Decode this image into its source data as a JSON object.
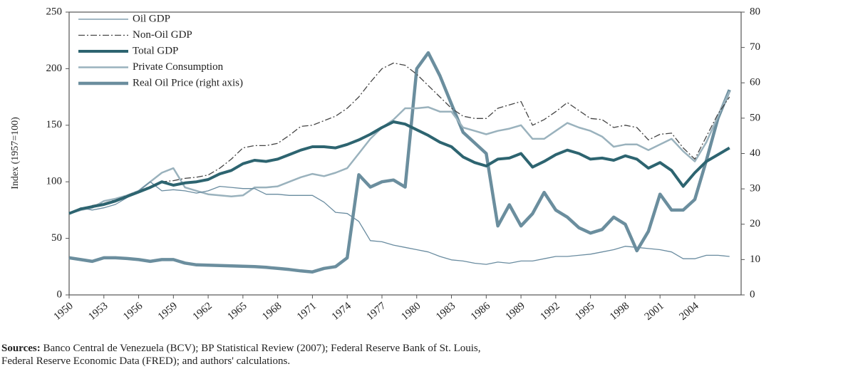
{
  "chart_data": {
    "type": "line",
    "y_label": "Index (1957=100)",
    "note_label": "Sources:",
    "note": "Banco Central de Venezuela (BCV); BP Statistical Review (2007); Federal Reserve Bank of St. Louis, Federal Reserve Economic Data (FRED); and authors' calculations.",
    "x": [
      1950,
      1951,
      1952,
      1953,
      1954,
      1955,
      1956,
      1957,
      1958,
      1959,
      1960,
      1961,
      1962,
      1963,
      1964,
      1965,
      1966,
      1967,
      1968,
      1969,
      1970,
      1971,
      1972,
      1973,
      1974,
      1975,
      1976,
      1977,
      1978,
      1979,
      1980,
      1981,
      1982,
      1983,
      1984,
      1985,
      1986,
      1987,
      1988,
      1989,
      1990,
      1991,
      1992,
      1993,
      1994,
      1995,
      1996,
      1997,
      1998,
      1999,
      2000,
      2001,
      2002,
      2003,
      2004,
      2005,
      2006,
      2007
    ],
    "xlim": [
      1950,
      2008
    ],
    "xticks": [
      1950,
      1953,
      1956,
      1959,
      1962,
      1965,
      1968,
      1971,
      1974,
      1977,
      1980,
      1983,
      1986,
      1989,
      1992,
      1995,
      1998,
      2001,
      2004
    ],
    "ylim": [
      0,
      250
    ],
    "yticks": [
      0,
      50,
      100,
      150,
      200,
      250
    ],
    "y2lim": [
      0,
      80
    ],
    "y2ticks": [
      0,
      10,
      20,
      30,
      40,
      50,
      60,
      70,
      80
    ],
    "series": [
      {
        "name": "Oil GDP",
        "color": "#6a8ca0",
        "style": "solid",
        "width": 1.3,
        "values": [
          72,
          77,
          75,
          77,
          80,
          86,
          92,
          100,
          92,
          93,
          92,
          90,
          92,
          96,
          95,
          94,
          94,
          89,
          89,
          88,
          88,
          88,
          82,
          73,
          72,
          65,
          48,
          47,
          44,
          42,
          40,
          38,
          34,
          31,
          30,
          28,
          27,
          29,
          28,
          30,
          30,
          32,
          34,
          34,
          35,
          36,
          38,
          40,
          43,
          42,
          41,
          40,
          38,
          32,
          32,
          35,
          35,
          34
        ]
      },
      {
        "name": "Non-Oil GDP",
        "color": "#444444",
        "style": "dashdot",
        "width": 1.3,
        "values": [
          72,
          76,
          79,
          81,
          84,
          88,
          92,
          96,
          100,
          101,
          103,
          104,
          106,
          112,
          120,
          130,
          132,
          132,
          134,
          141,
          149,
          150,
          154,
          158,
          165,
          175,
          188,
          200,
          205,
          203,
          195,
          185,
          175,
          165,
          158,
          156,
          156,
          165,
          168,
          171,
          150,
          155,
          162,
          170,
          163,
          156,
          155,
          148,
          150,
          148,
          137,
          142,
          143,
          130,
          120,
          140,
          160,
          175
        ]
      },
      {
        "name": "Total GDP",
        "color": "#2d6470",
        "style": "solid",
        "width": 4,
        "values": [
          72,
          76,
          78,
          80,
          83,
          87,
          91,
          95,
          100,
          97,
          99,
          100,
          102,
          107,
          110,
          116,
          119,
          118,
          120,
          124,
          128,
          131,
          131,
          130,
          133,
          137,
          142,
          148,
          153,
          151,
          146,
          141,
          135,
          131,
          122,
          117,
          114,
          120,
          121,
          125,
          113,
          118,
          124,
          128,
          125,
          120,
          121,
          119,
          123,
          120,
          112,
          117,
          110,
          96,
          108,
          118,
          124,
          130
        ]
      },
      {
        "name": "Private Consumption",
        "color": "#9ab2bd",
        "style": "solid",
        "width": 2.5,
        "values": [
          72,
          75,
          77,
          83,
          85,
          88,
          92,
          100,
          108,
          112,
          95,
          92,
          89,
          88,
          87,
          88,
          95,
          95,
          96,
          100,
          104,
          107,
          105,
          108,
          112,
          125,
          138,
          148,
          155,
          165,
          165,
          166,
          162,
          162,
          148,
          145,
          142,
          145,
          147,
          150,
          138,
          138,
          145,
          152,
          148,
          145,
          140,
          131,
          133,
          133,
          128,
          133,
          138,
          127,
          118,
          135,
          158,
          180
        ]
      },
      {
        "name": "Real Oil Price (right axis)",
        "color": "#6b8e9e",
        "style": "solid",
        "width": 4.5,
        "axis": "y2",
        "values": [
          10.5,
          10,
          9.5,
          10.5,
          10.5,
          10.3,
          10,
          9.5,
          10,
          10,
          9,
          8.5,
          8.4,
          8.3,
          8.2,
          8.1,
          8,
          7.8,
          7.5,
          7.2,
          6.8,
          6.5,
          7.5,
          8,
          10.5,
          34,
          30.5,
          32,
          32.5,
          30.5,
          64,
          68.5,
          62,
          54,
          46,
          43,
          40,
          19.5,
          25.5,
          19.5,
          23,
          29,
          24,
          22,
          19,
          17.5,
          18.5,
          22,
          20,
          12.5,
          18,
          28.5,
          24,
          24,
          27,
          38,
          50,
          58
        ]
      }
    ]
  }
}
